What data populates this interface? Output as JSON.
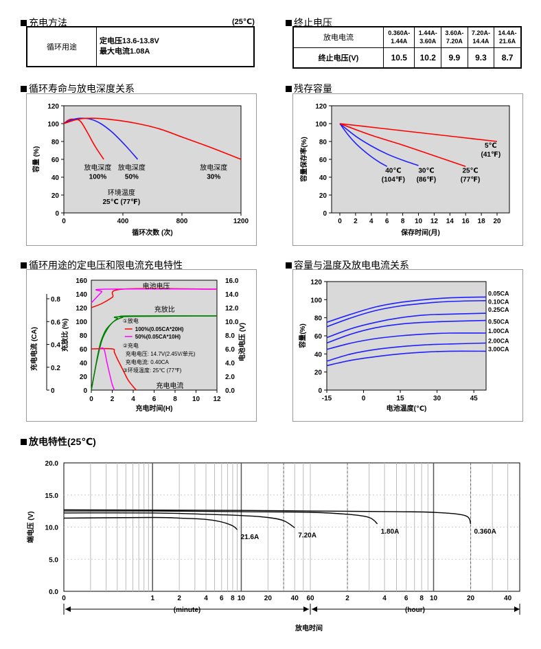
{
  "charge_method": {
    "title": "充电方法",
    "temp": "(25℃)",
    "row_label": "循环用途",
    "line1": "定电压13.6-13.8V",
    "line2": "最大电流1.08A"
  },
  "cutoff": {
    "title": "终止电压",
    "head_label": "放电电流",
    "ranges": [
      [
        "0.360A-",
        "1.44A"
      ],
      [
        "1.44A-",
        "3.60A"
      ],
      [
        "3.60A-",
        "7.20A"
      ],
      [
        "7.20A-",
        "14.4A"
      ],
      [
        "14.4A-",
        "21.6A"
      ]
    ],
    "row_label": "终止电压(V)",
    "values": [
      "10.5",
      "10.2",
      "9.9",
      "9.3",
      "8.7"
    ]
  },
  "chart_data": [
    {
      "type": "line",
      "title": "循环寿命与放电深度关系",
      "xlabel": "循环次数 (次)",
      "ylabel": "容量 (%)",
      "xlim": [
        0,
        1200
      ],
      "ylim": [
        0,
        120
      ],
      "xticks": [
        0,
        400,
        800,
        1200
      ],
      "yticks": [
        0,
        20,
        40,
        60,
        80,
        100,
        120
      ],
      "grid": false,
      "series": [
        {
          "name": "放电深度 100%",
          "color": "#ff0000",
          "x": [
            0,
            30,
            60,
            110,
            160,
            210,
            270
          ],
          "y": [
            100,
            104,
            105,
            103,
            90,
            75,
            60
          ]
        },
        {
          "name": "放电深度 50%",
          "color": "#1f1fff",
          "x": [
            0,
            50,
            110,
            180,
            250,
            330,
            420,
            500
          ],
          "y": [
            100,
            104,
            106,
            105,
            100,
            90,
            75,
            60
          ]
        },
        {
          "name": "放电深度 30%",
          "color": "#ff0000",
          "x": [
            0,
            100,
            200,
            350,
            500,
            650,
            800,
            1000,
            1200
          ],
          "y": [
            100,
            105,
            106,
            104,
            100,
            94,
            85,
            73,
            60
          ]
        }
      ],
      "annotations": [
        {
          "line1": "放电深度",
          "line2": "100%",
          "x": 230,
          "y": 48
        },
        {
          "line1": "放电深度",
          "line2": "50%",
          "x": 460,
          "y": 48
        },
        {
          "line1": "放电深度",
          "line2": "30%",
          "x": 1015,
          "y": 48
        },
        {
          "line1": "环境温度",
          "line2": "25℃ (77℉)",
          "x": 390,
          "y": 20
        }
      ]
    },
    {
      "type": "line",
      "title": "残存容量",
      "xlabel": "保存时间(月)",
      "ylabel": "容量保存率(%)",
      "xlim": [
        0,
        20
      ],
      "ylim": [
        0,
        120
      ],
      "xticks": [
        0,
        2,
        4,
        6,
        8,
        10,
        12,
        14,
        16,
        18,
        20
      ],
      "yticks": [
        0,
        20,
        40,
        60,
        80,
        100,
        120
      ],
      "grid": false,
      "series": [
        {
          "name": "40℃ (104℉)",
          "color": "#1f1fff",
          "x": [
            0,
            1,
            2,
            3,
            4,
            5,
            6
          ],
          "y": [
            100,
            88,
            78,
            70,
            63,
            57,
            52
          ]
        },
        {
          "name": "30℃ (86℉)",
          "color": "#1f1fff",
          "x": [
            0,
            2,
            4,
            6,
            8,
            10
          ],
          "y": [
            100,
            86,
            75,
            66,
            59,
            53
          ]
        },
        {
          "name": "25℃ (77℉)",
          "color": "#ff0000",
          "x": [
            0,
            4,
            8,
            12,
            16
          ],
          "y": [
            100,
            87,
            76,
            64,
            52
          ]
        },
        {
          "name": "5℃ (41℉)",
          "color": "#ff0000",
          "x": [
            0,
            5,
            10,
            15,
            20
          ],
          "y": [
            100,
            95,
            90,
            85,
            80
          ]
        }
      ],
      "annotations": [
        {
          "line1": "40℃",
          "line2": "(104℉)",
          "x": 6.8,
          "y": 45
        },
        {
          "line1": "30℃",
          "line2": "(86℉)",
          "x": 11.0,
          "y": 45
        },
        {
          "line1": "25℃",
          "line2": "(77℉)",
          "x": 16.6,
          "y": 45
        },
        {
          "line1": "5℃",
          "line2": "(41℉)",
          "x": 19.2,
          "y": 73
        }
      ]
    },
    {
      "type": "line",
      "title": "循环用途的定电压和限电流充电特性",
      "xlabel": "充电时间(H)",
      "ylabel_charge_ratio": "充放比 (%)",
      "ylabel_current": "充电电流 (CA)",
      "ylabel_voltage": "电池电压 (V)",
      "xlim": [
        0,
        12
      ],
      "ylim": [
        0,
        160
      ],
      "xticks": [
        0,
        2,
        4,
        6,
        8,
        10,
        12
      ],
      "yticks_charge_ratio": [
        0,
        20,
        40,
        60,
        80,
        100,
        120,
        140,
        160
      ],
      "yticks_voltage": [
        "0.0",
        "2.0",
        "4.0",
        "6.0",
        "8.0",
        "10.0",
        "12.0",
        "14.0",
        "16.0"
      ],
      "yticks_current": [
        "0",
        "0.2",
        "0.4",
        "0.6",
        "0.8"
      ],
      "grid": false,
      "series": [
        {
          "name": "电池电压 100%",
          "color": "#ff0000",
          "x": [
            0,
            1,
            2,
            3,
            12
          ],
          "y": [
            120,
            126,
            135,
            147,
            147
          ]
        },
        {
          "name": "电池电压 50%",
          "color": "#ff00ff",
          "x": [
            0,
            0.5,
            1,
            1.3,
            12
          ],
          "y": [
            127,
            135,
            143,
            147,
            147
          ]
        },
        {
          "name": "充放比 100%",
          "color": "#008000",
          "x": [
            0,
            0.5,
            1,
            1.5,
            2,
            2.5,
            3,
            3.5,
            12
          ],
          "y": [
            0,
            40,
            72,
            88,
            98,
            103,
            106,
            108,
            108
          ]
        },
        {
          "name": "充放比 50%",
          "color": "#008000",
          "x": [
            0,
            0.3,
            0.6,
            0.9,
            1.2,
            1.5,
            2,
            2.5,
            3,
            12
          ],
          "y": [
            0,
            25,
            50,
            70,
            82,
            90,
            98,
            104,
            107,
            108
          ]
        },
        {
          "name": "充电电流 100%",
          "color": "#ff0000",
          "x": [
            0,
            2,
            2.2,
            2.5,
            3,
            3.5,
            4,
            4.3
          ],
          "y": [
            60,
            60,
            55,
            45,
            30,
            15,
            5,
            0
          ]
        },
        {
          "name": "充电电流 50%",
          "color": "#ff00ff",
          "x": [
            0.8,
            1.2,
            1.5,
            1.8,
            2,
            2.2
          ],
          "y": [
            60,
            60,
            40,
            20,
            8,
            0
          ]
        }
      ],
      "labels": {
        "battery_voltage": "电池电压",
        "charge_ratio": "充放比",
        "charge_current": "充电电流",
        "discharge_head": "①放电",
        "leg100": "100%(0.05CA*20H)",
        "leg50": "50%(0.05CA*10H)",
        "charge_head": "②充电",
        "charge_v": "充电电压: 14.7V(2.45V/单元)",
        "charge_i": "充电电流: 0.40CA",
        "env": "③环境温度: 25℃ (77℉)"
      }
    },
    {
      "type": "line",
      "title": "容量与温度及放电电流关系",
      "xlabel": "电池温度(℃)",
      "ylabel": "容量(%)",
      "xlim": [
        -15,
        50
      ],
      "ylim": [
        0,
        120
      ],
      "xticks": [
        -15,
        0,
        15,
        30,
        45
      ],
      "yticks": [
        0,
        20,
        40,
        60,
        80,
        100,
        120
      ],
      "grid": false,
      "series": [
        {
          "name": "0.05CA",
          "color": "#1f1fff",
          "x": [
            -15,
            -5,
            5,
            15,
            25,
            35,
            50
          ],
          "y": [
            75,
            84,
            92,
            97,
            100,
            102,
            103
          ]
        },
        {
          "name": "0.10CA",
          "color": "#1f1fff",
          "x": [
            -15,
            -5,
            5,
            15,
            25,
            35,
            50
          ],
          "y": [
            70,
            80,
            88,
            93,
            96,
            98,
            99
          ]
        },
        {
          "name": "0.25CA",
          "color": "#1f1fff",
          "x": [
            -15,
            -5,
            5,
            15,
            25,
            35,
            50
          ],
          "y": [
            58,
            68,
            75,
            80,
            83,
            84,
            85
          ]
        },
        {
          "name": "0.50CA",
          "color": "#1f1fff",
          "x": [
            -15,
            -5,
            5,
            15,
            25,
            35,
            50
          ],
          "y": [
            52,
            62,
            69,
            73,
            75,
            76,
            77
          ]
        },
        {
          "name": "1.00CA",
          "color": "#1f1fff",
          "x": [
            -15,
            -5,
            5,
            15,
            25,
            35,
            50
          ],
          "y": [
            45,
            52,
            57,
            60,
            62,
            63,
            63
          ]
        },
        {
          "name": "2.00CA",
          "color": "#1f1fff",
          "x": [
            -15,
            -5,
            5,
            15,
            25,
            35,
            50
          ],
          "y": [
            32,
            40,
            45,
            48,
            50,
            51,
            52
          ]
        },
        {
          "name": "3.00CA",
          "color": "#1f1fff",
          "x": [
            -15,
            -5,
            5,
            15,
            25,
            35,
            50
          ],
          "y": [
            27,
            33,
            37,
            40,
            42,
            43,
            43
          ]
        }
      ]
    },
    {
      "type": "line",
      "title": "放电特性(25℃)",
      "xlabel": "放电时间",
      "ylabel": "端电压 (V)",
      "ylim": [
        0,
        20
      ],
      "yticks": [
        "0.0",
        "5.0",
        "10.0",
        "15.0",
        "20.0"
      ],
      "xticks_minute": [
        "0",
        "1",
        "2",
        "4",
        "6",
        "8",
        "10",
        "20",
        "40",
        "60"
      ],
      "xticks_hour": [
        "2",
        "4",
        "6",
        "8",
        "10",
        "20",
        "40"
      ],
      "unit_minute": "(minute)",
      "unit_hour": "(hour)",
      "grid": true,
      "series": [
        {
          "name": "21.6A",
          "color": "#000000",
          "x_minutes": [
            0.1,
            1,
            2,
            4,
            6,
            8,
            9
          ],
          "y": [
            11.4,
            11.5,
            11.4,
            11.2,
            10.8,
            10.2,
            9.6
          ]
        },
        {
          "name": "7.20A",
          "color": "#000000",
          "x_minutes": [
            0.1,
            1,
            4,
            10,
            20,
            30,
            40
          ],
          "y": [
            12.2,
            12.2,
            12.0,
            11.8,
            11.5,
            11.0,
            9.9
          ]
        },
        {
          "name": "1.80A",
          "color": "#000000",
          "x_minutes": [
            0.1,
            1,
            10,
            60,
            120,
            180,
            210
          ],
          "y": [
            12.5,
            12.5,
            12.4,
            12.3,
            12.0,
            11.5,
            10.5
          ]
        },
        {
          "name": "0.360A",
          "color": "#000000",
          "x_minutes": [
            0.1,
            10,
            60,
            300,
            600,
            1080,
            1200
          ],
          "y": [
            12.7,
            12.6,
            12.5,
            12.4,
            12.3,
            11.8,
            10.5
          ]
        }
      ]
    }
  ]
}
